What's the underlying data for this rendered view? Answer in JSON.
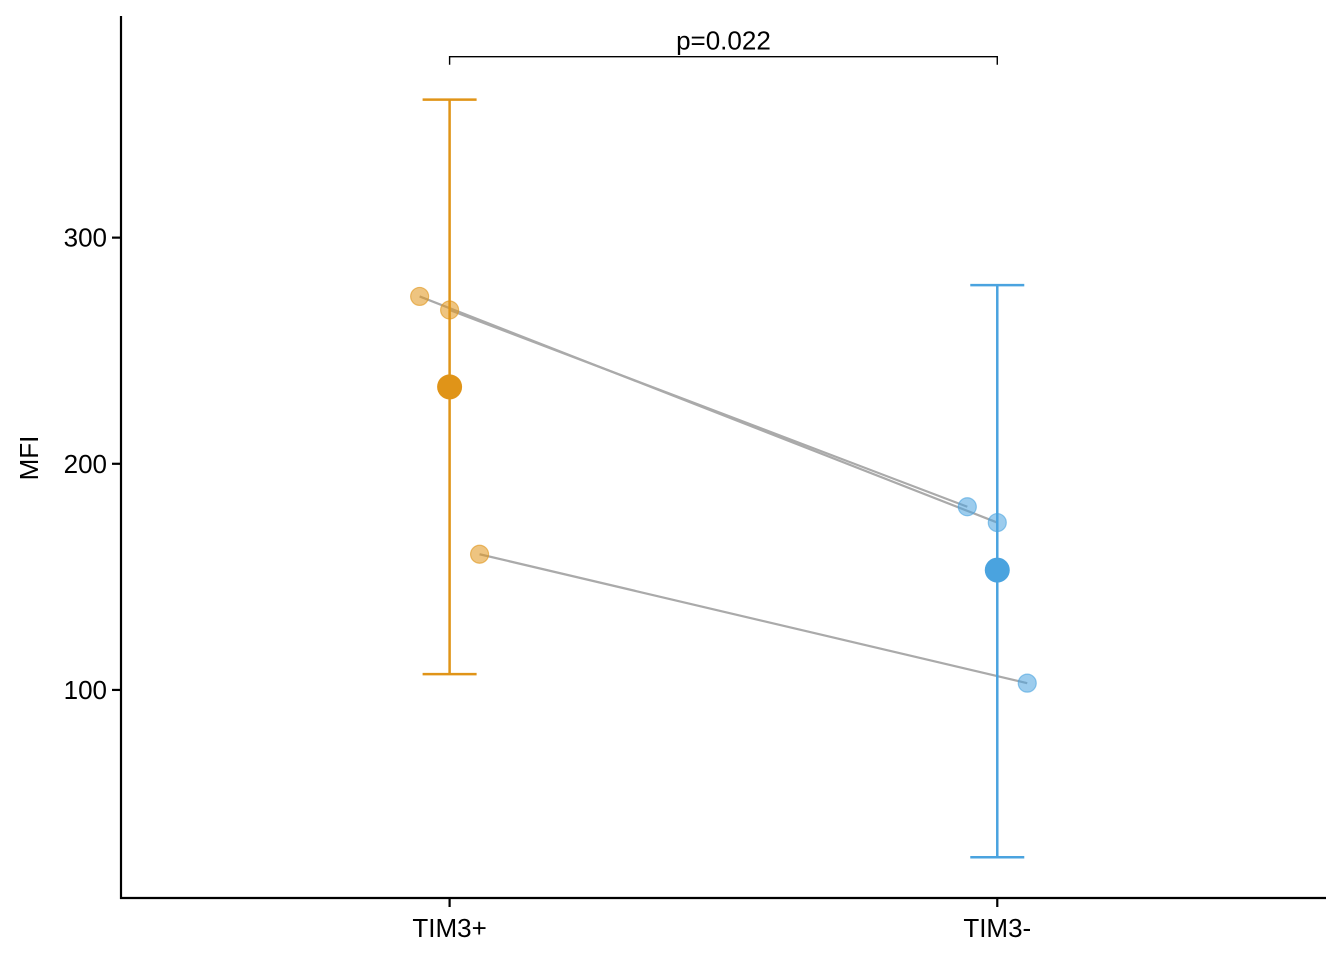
{
  "chart_data": {
    "type": "scatter",
    "title": "",
    "xlabel": "",
    "ylabel": "MFI",
    "categories": [
      "TIM3+",
      "TIM3-"
    ],
    "ylim": [
      8,
      398
    ],
    "yticks": [
      100,
      200,
      300
    ],
    "grid": false,
    "legend": "none",
    "colors": {
      "TIM3+": "#E09418",
      "TIM3-": "#4AA3DF",
      "pair_line": "#aaaaaa"
    },
    "summary": [
      {
        "category": "TIM3+",
        "mean": 234,
        "lower": 107,
        "upper": 361
      },
      {
        "category": "TIM3-",
        "mean": 153,
        "lower": 26,
        "upper": 279
      }
    ],
    "points": [
      {
        "category": "TIM3+",
        "jitter": -0.067,
        "value": 274
      },
      {
        "category": "TIM3+",
        "jitter": 0.0,
        "value": 268
      },
      {
        "category": "TIM3+",
        "jitter": 0.067,
        "value": 160
      },
      {
        "category": "TIM3-",
        "jitter": -0.067,
        "value": 181
      },
      {
        "category": "TIM3-",
        "jitter": 0.0,
        "value": 174
      },
      {
        "category": "TIM3-",
        "jitter": 0.067,
        "value": 103
      }
    ],
    "pairs": [
      [
        0,
        4
      ],
      [
        1,
        3
      ],
      [
        2,
        5
      ]
    ],
    "annotation": {
      "text": "p=0.022",
      "from": "TIM3+",
      "to": "TIM3-",
      "y": 380
    }
  }
}
